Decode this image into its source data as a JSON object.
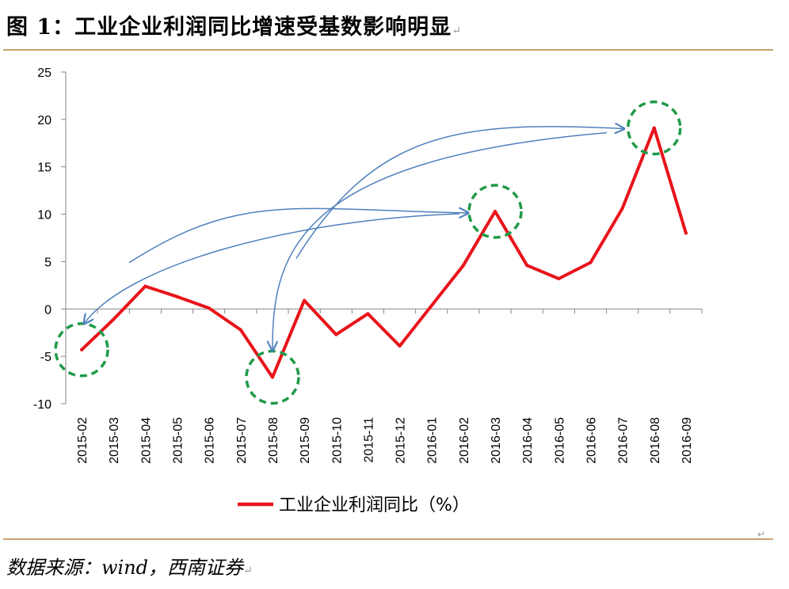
{
  "header": {
    "title": "图 1：工业企业利润同比增速受基数影响明显",
    "mark": "↵"
  },
  "footer": {
    "source": "数据来源：wind，西南证券",
    "mark": "↵",
    "corner_mark": "↵"
  },
  "chart_data": {
    "type": "line",
    "title": "",
    "xlabel": "",
    "ylabel": "",
    "categories": [
      "2015-02",
      "2015-03",
      "2015-04",
      "2015-05",
      "2015-06",
      "2015-07",
      "2015-08",
      "2015-09",
      "2015-10",
      "2015-11",
      "2015-12",
      "2016-01",
      "2016-02",
      "2016-03",
      "2016-04",
      "2016-05",
      "2016-06",
      "2016-07",
      "2016-08",
      "2016-09"
    ],
    "series": [
      {
        "name": "工业企业利润同比（%）",
        "color": "#e8141b",
        "values": [
          -4.3,
          -1.1,
          2.4,
          1.3,
          0.1,
          -2.2,
          -7.2,
          0.9,
          -2.7,
          -0.5,
          -3.9,
          null,
          4.6,
          10.3,
          4.6,
          3.2,
          4.9,
          10.6,
          19.1,
          8.0
        ]
      }
    ],
    "ylim": [
      -10,
      25
    ],
    "yticks": [
      -10,
      -5,
      0,
      5,
      10,
      15,
      20,
      25
    ],
    "grid": false,
    "legend": "bottom",
    "highlight_circles": [
      "2015-02",
      "2015-08",
      "2016-03",
      "2016-08"
    ],
    "highlight_color": "#1f9a48",
    "arrow_color": "#4f81bd",
    "arrows": [
      {
        "from": "2016-03",
        "to": "2015-02"
      },
      {
        "from": "2015-02",
        "to": "2016-03"
      },
      {
        "from": "2016-08",
        "to": "2015-08"
      },
      {
        "from": "2015-08",
        "to": "2016-08"
      }
    ]
  }
}
